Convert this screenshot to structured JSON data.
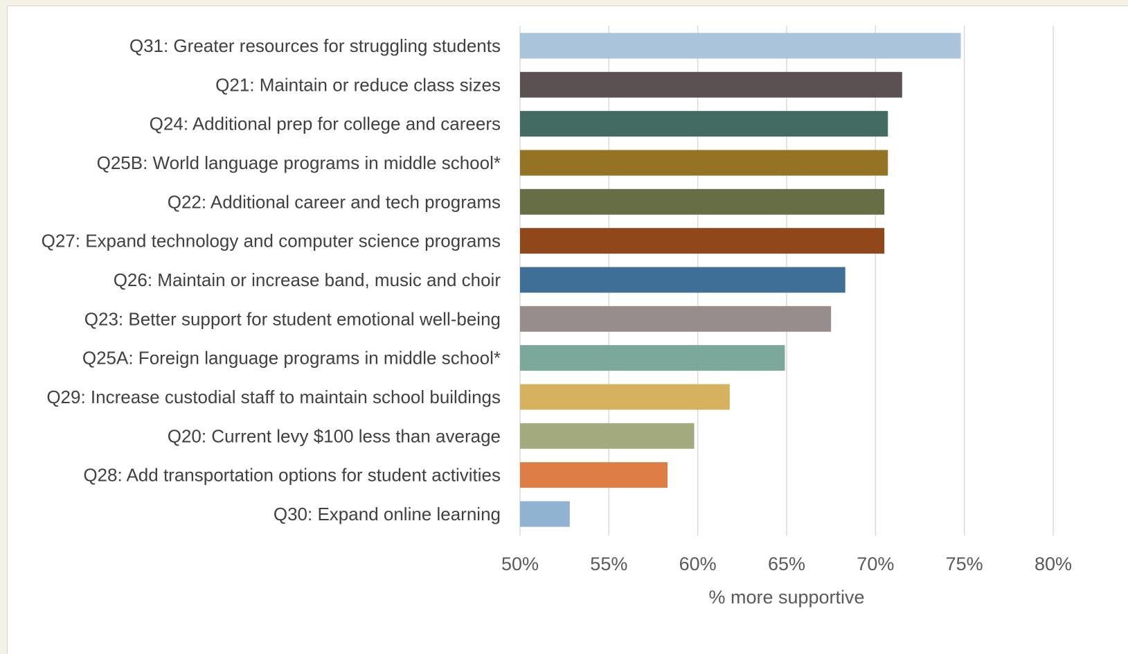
{
  "chart_data": {
    "type": "bar",
    "orientation": "horizontal",
    "categories": [
      "Q31: Greater resources for struggling students",
      "Q21: Maintain or reduce class sizes",
      "Q24: Additional prep for college and careers",
      "Q25B: World language programs in middle school*",
      "Q22: Additional career and tech programs",
      "Q27: Expand technology and computer science programs",
      "Q26: Maintain or increase band, music and choir",
      "Q23: Better support for student emotional well-being",
      "Q25A: Foreign language programs in middle school*",
      "Q29: Increase custodial staff to maintain school buildings",
      "Q20: Current levy $100 less than average",
      "Q28: Add transportation options for student activities",
      "Q30: Expand online learning"
    ],
    "values": [
      74.8,
      71.5,
      70.7,
      70.7,
      70.5,
      70.5,
      68.3,
      67.5,
      64.9,
      61.8,
      59.8,
      58.3,
      52.8
    ],
    "colors": [
      "#a9c4db",
      "#5b5152",
      "#446b62",
      "#957325",
      "#676d45",
      "#904719",
      "#3f6e96",
      "#978d8a",
      "#7ca89b",
      "#d6b25f",
      "#a3aa7e",
      "#dc7e45",
      "#91b3d2"
    ],
    "xlim": [
      50,
      80
    ],
    "xticks": [
      50,
      55,
      60,
      65,
      70,
      75,
      80
    ],
    "xtick_labels": [
      "50%",
      "55%",
      "60%",
      "65%",
      "70%",
      "75%",
      "80%"
    ],
    "title": "",
    "xlabel": "% more supportive",
    "ylabel": "",
    "grid": true,
    "legend": "none"
  }
}
